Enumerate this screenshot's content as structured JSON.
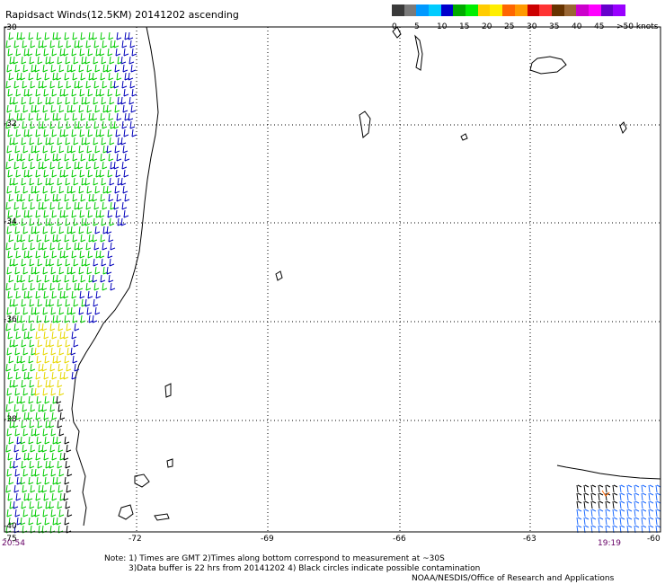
{
  "title": "Rapidsact Winds(12.5KM) 20141202 ascending",
  "legend": {
    "unit": "knots",
    "labels": [
      "0",
      "5",
      "10",
      "15",
      "20",
      "25",
      "30",
      "35",
      "40",
      "45",
      ">50 knots"
    ],
    "colors": [
      "#3a3a3a",
      "#7a7a7a",
      "#0099ff",
      "#00ccff",
      "#0000cc",
      "#00aa00",
      "#00ee00",
      "#ffcc00",
      "#ffee00",
      "#ff6600",
      "#ff9900",
      "#cc0000",
      "#ff3333",
      "#663300",
      "#996633",
      "#cc00cc",
      "#ff00ff",
      "#6600cc",
      "#9900ff"
    ]
  },
  "axes": {
    "lat_ticks": [
      "-30",
      "-32",
      "-34",
      "-36",
      "-38",
      "-40"
    ],
    "lon_ticks": [
      "-75",
      "-72",
      "-69",
      "-66",
      "-63",
      "-60"
    ]
  },
  "timestamps": {
    "left": "20:54",
    "right": "19:19"
  },
  "notes": {
    "line1": "Note: 1) Times are GMT 2)Times along bottom correspond to measurement at ~30S",
    "line2": "3)Data buffer is 22 hrs from 20141202 4) Black circles indicate possible contamination",
    "line3": "NOAA/NESDIS/Office of Research and Applications"
  }
}
